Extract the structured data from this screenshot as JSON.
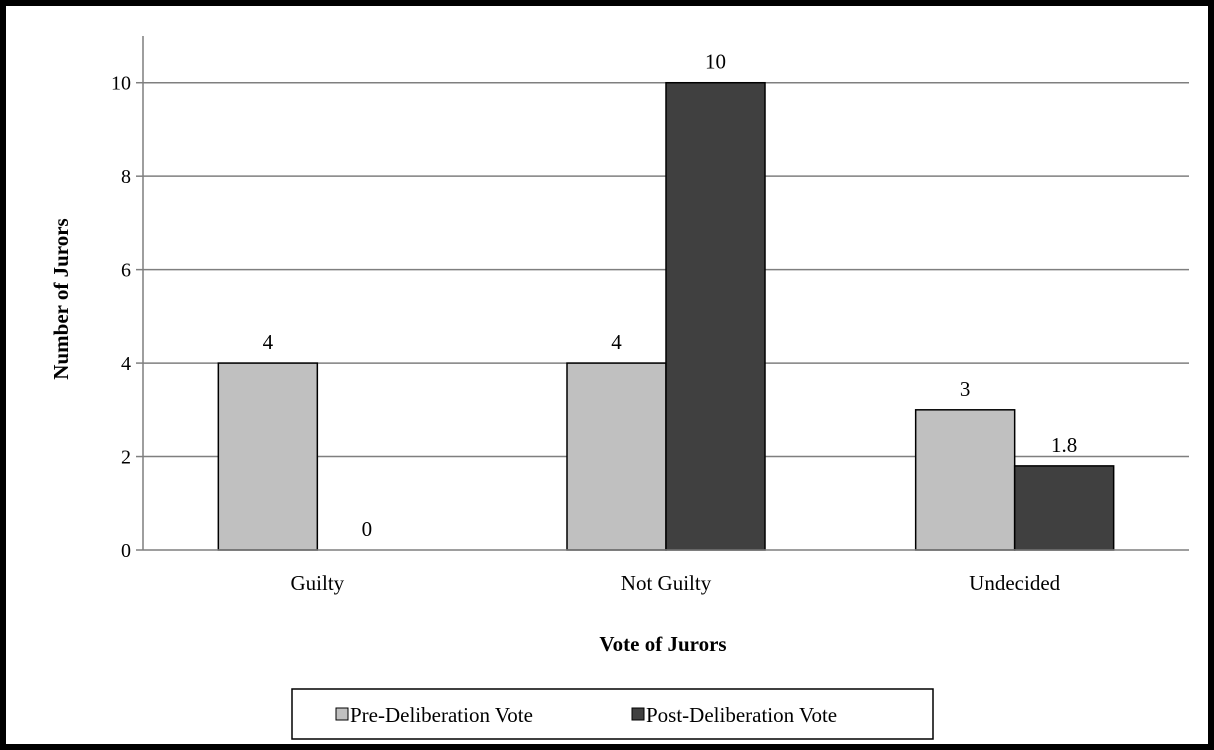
{
  "chart_data": {
    "type": "bar",
    "title": "",
    "xlabel": "Vote of Jurors",
    "ylabel": "Number of Jurors",
    "categories": [
      "Guilty",
      "Not Guilty",
      "Undecided"
    ],
    "series": [
      {
        "name": "Pre-Deliberation Vote",
        "values": [
          4,
          4,
          3
        ],
        "labels": [
          "4",
          "4",
          "3"
        ],
        "color": "#c0c0c0"
      },
      {
        "name": "Post-Deliberation Vote",
        "values": [
          0,
          10,
          1.8
        ],
        "labels": [
          "0",
          "10",
          "1.8"
        ],
        "color": "#404040"
      }
    ],
    "ylim": [
      0,
      11
    ],
    "yticks": [
      0,
      2,
      4,
      6,
      8,
      10
    ],
    "grid": true,
    "legend_position": "bottom"
  }
}
